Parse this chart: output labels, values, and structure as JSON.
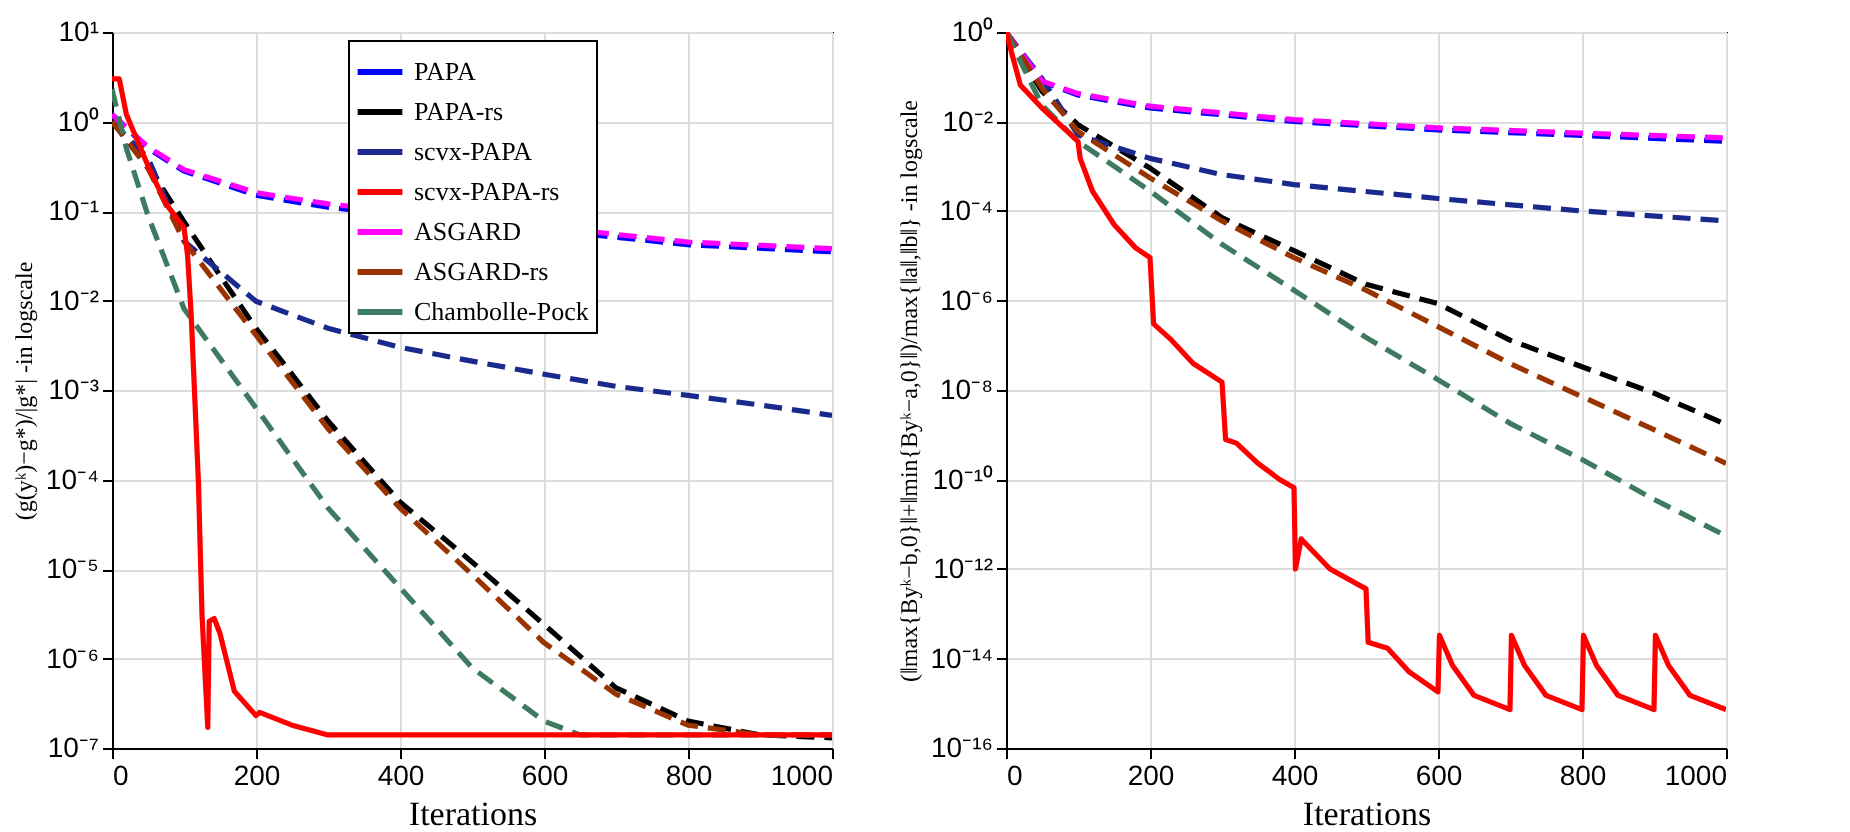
{
  "chart_data": [
    {
      "type": "line",
      "xlabel": "Iterations",
      "ylabel": "(g(yᵏ)−g*)/|g*| -in logscale",
      "log": true,
      "grid": true,
      "legend": "top",
      "marker": "none",
      "xlim": [
        0,
        1000
      ],
      "xticks": [
        0,
        200,
        400,
        600,
        800,
        1000
      ],
      "ylim": [
        1e-07,
        10
      ],
      "yticks": [
        {
          "value": 1e-07,
          "label": "10⁻⁷"
        },
        {
          "value": 1e-06,
          "label": "10⁻⁶"
        },
        {
          "value": 1e-05,
          "label": "10⁻⁵"
        },
        {
          "value": 0.0001,
          "label": "10⁻⁴"
        },
        {
          "value": 0.001,
          "label": "10⁻³"
        },
        {
          "value": 0.01,
          "label": "10⁻²"
        },
        {
          "value": 0.1,
          "label": "10⁻¹"
        },
        {
          "value": 1,
          "label": "10⁰"
        },
        {
          "value": 10,
          "label": "10¹"
        }
      ],
      "series": [
        {
          "name": "PAPA",
          "color": "#0000ff",
          "line_style": "dashed",
          "x": [
            0,
            50,
            100,
            200,
            300,
            800,
            1000
          ],
          "values": [
            1.2,
            0.5,
            0.28,
            0.15,
            0.11,
            0.042,
            0.035
          ]
        },
        {
          "name": "PAPA-rs",
          "color": "#000000",
          "line_style": "dashed",
          "x": [
            0,
            50,
            100,
            150,
            200,
            250,
            300,
            400,
            500,
            600,
            700,
            800,
            900,
            1000
          ],
          "values": [
            1,
            0.32,
            0.076,
            0.019,
            0.0049,
            0.0015,
            0.00045,
            5.6e-05,
            1.2e-05,
            2.4e-06,
            4.7e-07,
            2e-07,
            1.4e-07,
            1.3e-07
          ]
        },
        {
          "name": "scvx-PAPA",
          "color": "#1a2a8c",
          "line_style": "dashed",
          "x": [
            0,
            50,
            100,
            200,
            300,
            400,
            500,
            600,
            700,
            800,
            900,
            1000
          ],
          "values": [
            1,
            0.39,
            0.046,
            0.0098,
            0.0049,
            0.003,
            0.0021,
            0.0015,
            0.0011,
            0.00087,
            0.00068,
            0.00052
          ]
        },
        {
          "name": "scvx-PAPA-rs",
          "color": "#ff0000",
          "line_style": "solid",
          "x": [
            0,
            10,
            20,
            50,
            75,
            100,
            105,
            110,
            120,
            125,
            133,
            135,
            142,
            150,
            170,
            200,
            205,
            250,
            300,
            1000
          ],
          "values": [
            3,
            3,
            1.2,
            0.32,
            0.12,
            0.065,
            0.032,
            0.0069,
            9.5e-05,
            3.1e-06,
            1.7e-07,
            2.6e-06,
            2.8e-06,
            1.9e-06,
            4.3e-07,
            2.3e-07,
            2.5e-07,
            1.8e-07,
            1.4e-07,
            1.4e-07
          ]
        },
        {
          "name": "ASGARD",
          "color": "#ff00ff",
          "line_style": "dashed",
          "x": [
            0,
            50,
            100,
            200,
            300,
            800,
            1000
          ],
          "values": [
            1.2,
            0.52,
            0.29,
            0.16,
            0.12,
            0.045,
            0.038
          ]
        },
        {
          "name": "ASGARD-rs",
          "color": "#993300",
          "line_style": "dashed",
          "x": [
            0,
            50,
            100,
            200,
            300,
            400,
            500,
            600,
            700,
            800,
            900,
            1000
          ],
          "values": [
            1,
            0.3,
            0.046,
            0.0041,
            0.00037,
            4.8e-05,
            8.7e-06,
            1.5e-06,
            4e-07,
            1.8e-07,
            1.4e-07,
            1.4e-07
          ]
        },
        {
          "name": "Chambolle-Pock",
          "color": "#3d7a5f",
          "line_style": "dashed",
          "x": [
            0,
            20,
            50,
            100,
            200,
            300,
            400,
            500,
            600,
            650,
            1000
          ],
          "values": [
            2.3,
            0.5,
            0.089,
            0.0081,
            0.00063,
            4.8e-05,
            6.2e-06,
            7.9e-07,
            2e-07,
            1.4e-07,
            1.4e-07
          ]
        }
      ]
    },
    {
      "type": "line",
      "xlabel": "Iterations",
      "ylabel": "(‖max{Byᵏ−b,0}‖+‖min{Byᵏ−a,0}‖)/max{‖a‖,‖b‖} -in logscale",
      "log": true,
      "grid": true,
      "marker": "none",
      "xlim": [
        0,
        1000
      ],
      "xticks": [
        0,
        200,
        400,
        600,
        800,
        1000
      ],
      "ylim": [
        1e-16,
        1
      ],
      "yticks": [
        {
          "value": 1e-16,
          "label": "10⁻¹⁶"
        },
        {
          "value": 1e-14,
          "label": "10⁻¹⁴"
        },
        {
          "value": 1e-12,
          "label": "10⁻¹²"
        },
        {
          "value": 1e-10,
          "label": "10⁻¹⁰"
        },
        {
          "value": 1e-08,
          "label": "10⁻⁸"
        },
        {
          "value": 1e-06,
          "label": "10⁻⁶"
        },
        {
          "value": 0.0001,
          "label": "10⁻⁴"
        },
        {
          "value": 0.01,
          "label": "10⁻²"
        },
        {
          "value": 1,
          "label": "10⁰"
        }
      ],
      "series": [
        {
          "color": "#0000ff",
          "line_style": "dashed",
          "x": [
            0,
            50,
            100,
            200,
            400,
            600,
            800,
            1000
          ],
          "values": [
            1,
            0.078,
            0.039,
            0.02,
            0.01,
            0.0065,
            0.0049,
            0.0036
          ]
        },
        {
          "color": "#000000",
          "line_style": "dashed",
          "x": [
            0,
            50,
            100,
            200,
            300,
            400,
            500,
            600,
            700,
            800,
            900,
            1000
          ],
          "values": [
            1,
            0.047,
            0.0085,
            0.00091,
            7.1e-05,
            1.3e-05,
            2.3e-06,
            8.5e-07,
            1.3e-07,
            3.3e-08,
            8.5e-09,
            1.7e-09
          ]
        },
        {
          "color": "#1a2a8c",
          "line_style": "dashed",
          "x": [
            0,
            50,
            100,
            200,
            300,
            400,
            600,
            800,
            1000
          ],
          "values": [
            1,
            0.091,
            0.005,
            0.0015,
            0.00065,
            0.00039,
            0.00019,
            0.0001,
            6e-05
          ]
        },
        {
          "color": "#ff0000",
          "line_style": "solid",
          "x": [
            0,
            20,
            50,
            100,
            103,
            120,
            150,
            180,
            200,
            205,
            230,
            260,
            300,
            305,
            320,
            350,
            380,
            400,
            402,
            410,
            450,
            500,
            503,
            530,
            560,
            600,
            602,
            620,
            650,
            700,
            702,
            720,
            750,
            800,
            802,
            820,
            850,
            900,
            902,
            920,
            950,
            1000
          ],
          "values": [
            1,
            0.065,
            0.02,
            0.0036,
            0.0015,
            0.00028,
            5e-05,
            1.5e-05,
            9.1e-06,
            3e-07,
            1.3e-07,
            3.9e-08,
            1.5e-08,
            7.8e-10,
            6.5e-10,
            2.3e-10,
            1e-10,
            6.5e-11,
            1e-12,
            4.7e-12,
            1e-12,
            3.6e-13,
            2.3e-14,
            1.7e-14,
            5e-15,
            1.8e-15,
            3.3e-14,
            7.1e-15,
            1.5e-15,
            7.2e-16,
            3.3e-14,
            7.1e-15,
            1.5e-15,
            7.2e-16,
            3.3e-14,
            7.1e-15,
            1.5e-15,
            7.2e-16,
            3.3e-14,
            7.1e-15,
            1.5e-15,
            7.2e-16
          ]
        },
        {
          "color": "#ff00ff",
          "line_style": "dashed",
          "x": [
            0,
            50,
            100,
            200,
            400,
            600,
            800,
            1000
          ],
          "values": [
            1,
            0.08,
            0.042,
            0.022,
            0.011,
            0.0072,
            0.0055,
            0.0043
          ]
        },
        {
          "color": "#993300",
          "line_style": "dashed",
          "x": [
            0,
            50,
            100,
            200,
            300,
            400,
            500,
            600,
            700,
            800,
            900,
            1000
          ],
          "values": [
            1,
            0.055,
            0.006,
            0.00055,
            6e-05,
            9.1e-06,
            1.7e-06,
            2.6e-07,
            3.9e-08,
            7.1e-09,
            1.3e-09,
            2.3e-10
          ]
        },
        {
          "color": "#3d7a5f",
          "line_style": "dashed",
          "x": [
            0,
            50,
            100,
            200,
            300,
            400,
            500,
            600,
            700,
            800,
            900,
            1000
          ],
          "values": [
            1,
            0.023,
            0.0036,
            0.00028,
            1.8e-05,
            1.7e-06,
            1.5e-07,
            1.7e-08,
            1.8e-09,
            2.8e-10,
            3.6e-11,
            5.5e-12
          ]
        }
      ]
    }
  ]
}
